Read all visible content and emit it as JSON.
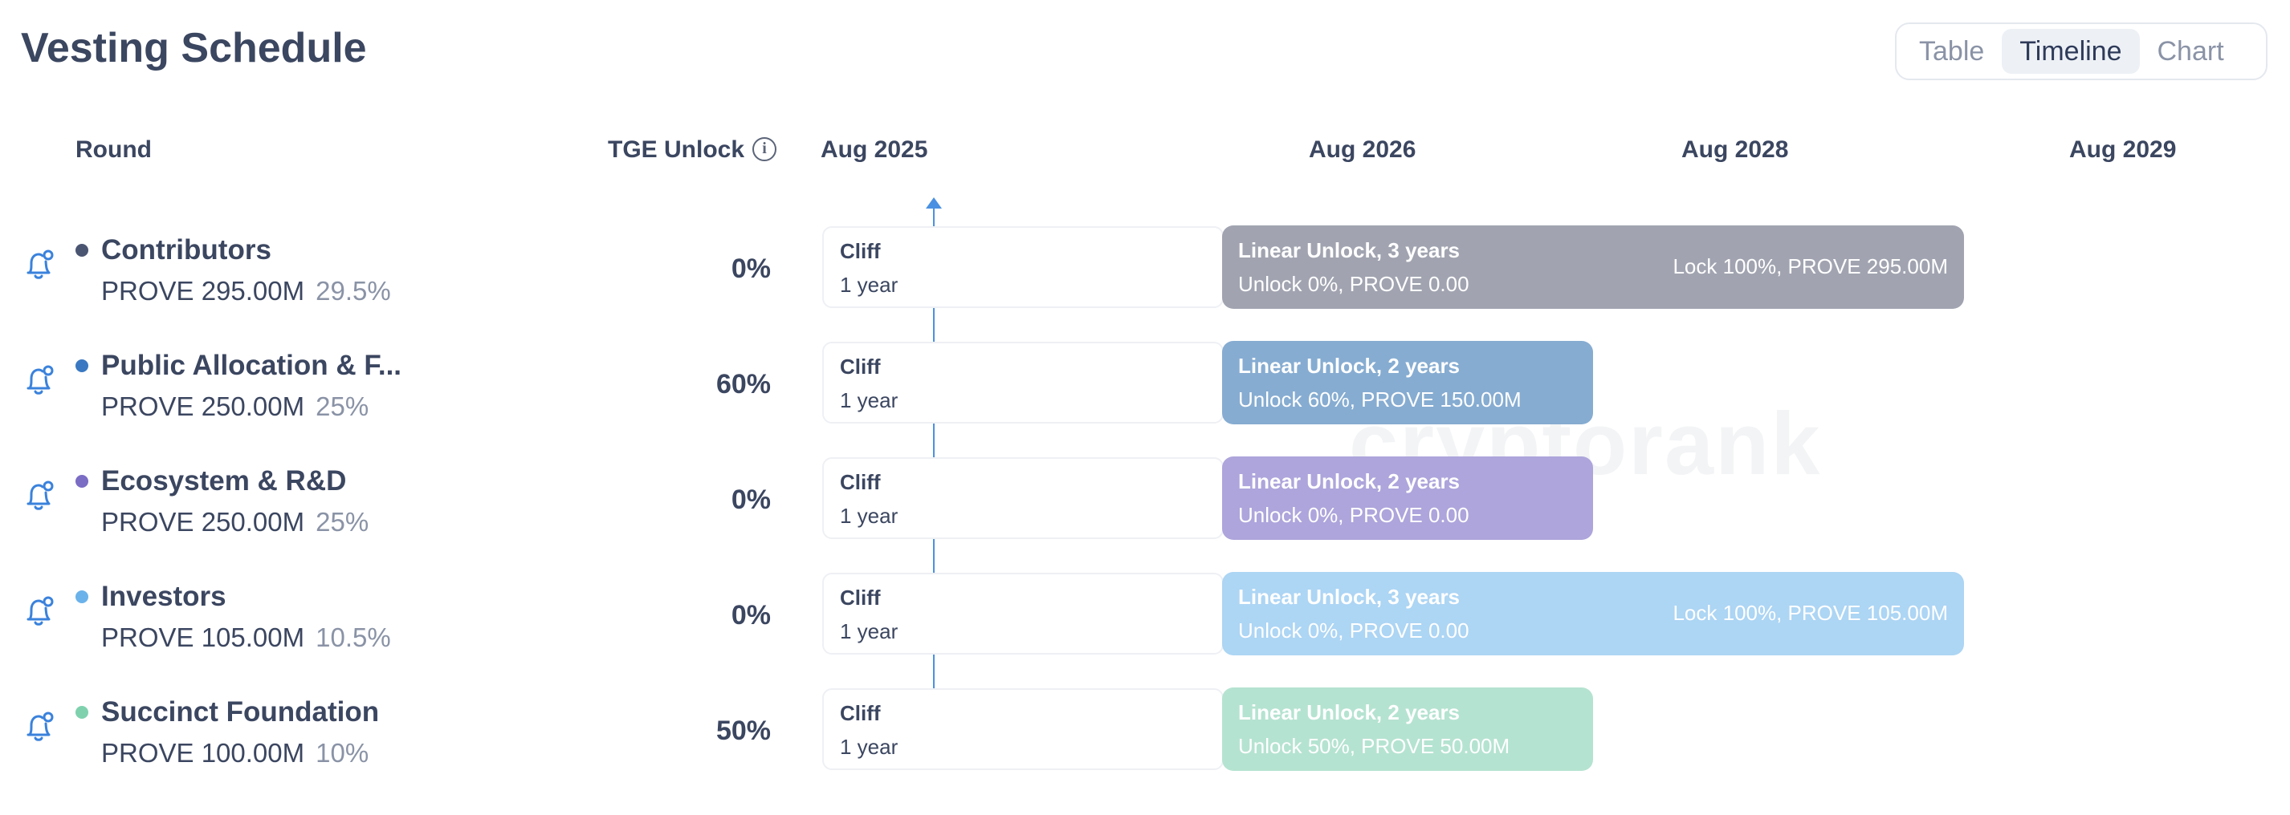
{
  "page": {
    "title": "Vesting Schedule"
  },
  "view_tabs": [
    {
      "label": "Table",
      "active": false
    },
    {
      "label": "Timeline",
      "active": true
    },
    {
      "label": "Chart",
      "active": false
    }
  ],
  "columns": {
    "round": "Round",
    "tge_unlock": "TGE Unlock",
    "info_icon": "info-icon"
  },
  "timeline_labels": [
    "Aug 2025",
    "Aug 2026",
    "Aug 2028",
    "Aug 2029"
  ],
  "watermark": "cryptorank",
  "rounds": [
    {
      "name": "Contributors",
      "amount": "PROVE 295.00M",
      "percent": "29.5%",
      "tge": "0%",
      "dot_color": "#4a5572",
      "cliff_label": "Cliff",
      "cliff_duration": "1 year",
      "unlock_title": "Linear Unlock, 3 years",
      "unlock_detail": "Unlock 0%, PROVE 0.00",
      "lock_text": "Lock 100%, PROVE 295.00M",
      "bar_color": "#a1a4b0",
      "icon": "bell-icon"
    },
    {
      "name": "Public Allocation & F...",
      "amount": "PROVE 250.00M",
      "percent": "25%",
      "tge": "60%",
      "dot_color": "#3a78c2",
      "cliff_label": "Cliff",
      "cliff_duration": "1 year",
      "unlock_title": "Linear Unlock, 2 years",
      "unlock_detail": "Unlock 60%, PROVE 150.00M",
      "lock_text": "",
      "bar_color": "#86acd1",
      "icon": "bell-icon"
    },
    {
      "name": "Ecosystem & R&D",
      "amount": "PROVE 250.00M",
      "percent": "25%",
      "tge": "0%",
      "dot_color": "#7b6cc4",
      "cliff_label": "Cliff",
      "cliff_duration": "1 year",
      "unlock_title": "Linear Unlock, 2 years",
      "unlock_detail": "Unlock 0%, PROVE 0.00",
      "lock_text": "",
      "bar_color": "#ada5db",
      "icon": "bell-icon"
    },
    {
      "name": "Investors",
      "amount": "PROVE 105.00M",
      "percent": "10.5%",
      "tge": "0%",
      "dot_color": "#6bb2ea",
      "cliff_label": "Cliff",
      "cliff_duration": "1 year",
      "unlock_title": "Linear Unlock, 3 years",
      "unlock_detail": "Unlock 0%, PROVE 0.00",
      "lock_text": "Lock 100%, PROVE 105.00M",
      "bar_color": "#add5f4",
      "icon": "bell-icon"
    },
    {
      "name": "Succinct Foundation",
      "amount": "PROVE 100.00M",
      "percent": "10%",
      "tge": "50%",
      "dot_color": "#7fd1ae",
      "cliff_label": "Cliff",
      "cliff_duration": "1 year",
      "unlock_title": "Linear Unlock, 2 years",
      "unlock_detail": "Unlock 50%, PROVE 50.00M",
      "lock_text": "",
      "bar_color": "#b5e3d1",
      "icon": "bell-icon"
    }
  ]
}
